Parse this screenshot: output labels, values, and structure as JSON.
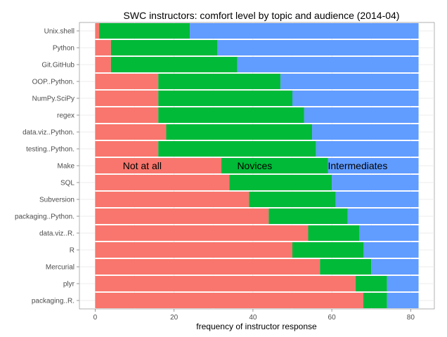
{
  "chart_data": {
    "type": "bar",
    "orientation": "horizontal",
    "stacked": true,
    "title": "SWC instructors: comfort level by topic and audience (2014-04)",
    "xlabel": "frequency of instructor response",
    "ylabel": "",
    "xlim": [
      -4,
      86
    ],
    "xticks": [
      0,
      20,
      40,
      60,
      80
    ],
    "grid": true,
    "legend": "none",
    "categories": [
      "Unix.shell",
      "Python",
      "Git.GitHub",
      "OOP..Python.",
      "NumPy.SciPy",
      "regex",
      "data.viz..Python.",
      "testing..Python.",
      "Make",
      "SQL",
      "Subversion",
      "packaging..Python.",
      "data.viz..R.",
      "R",
      "Mercurial",
      "plyr",
      "packaging..R."
    ],
    "series": [
      {
        "name": "Not at all",
        "color": "#F8766D",
        "values": [
          1,
          4,
          4,
          16,
          16,
          16,
          18,
          16,
          32,
          34,
          39,
          44,
          54,
          50,
          57,
          66,
          68
        ]
      },
      {
        "name": "Novices",
        "color": "#00BA38",
        "values": [
          23,
          27,
          32,
          31,
          34,
          37,
          37,
          40,
          27,
          26,
          22,
          20,
          13,
          18,
          13,
          8,
          6
        ]
      },
      {
        "name": "Intermediates",
        "color": "#619CFF",
        "values": [
          58,
          51,
          46,
          35,
          32,
          29,
          27,
          26,
          23,
          22,
          21,
          18,
          15,
          14,
          12,
          8,
          8
        ]
      }
    ],
    "annotations": [
      {
        "text": "Not at all",
        "category": "Make",
        "x": 7
      },
      {
        "text": "Novices",
        "category": "Make",
        "x": 36
      },
      {
        "text": "Intermediates",
        "category": "Make",
        "x": 59
      }
    ]
  }
}
